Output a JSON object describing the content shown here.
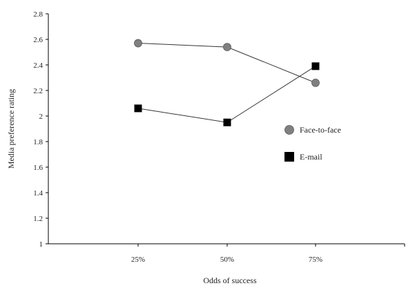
{
  "chart_data": {
    "type": "line",
    "title": "",
    "xlabel": "Odds of success",
    "ylabel": "Media preference rating",
    "categories": [
      "25%",
      "50%",
      "75%"
    ],
    "ylim": [
      1,
      2.8
    ],
    "yticks": [
      "1",
      "1.2",
      "1.4",
      "1.6",
      "1.8",
      "2",
      "2.2",
      "2.4",
      "2.6",
      "2.8"
    ],
    "grid": false,
    "legend_position": "right",
    "series": [
      {
        "name": "Face-to-face",
        "values": [
          2.57,
          2.54,
          2.26
        ],
        "marker": "circle",
        "color": "#808080"
      },
      {
        "name": "E-mail",
        "values": [
          2.06,
          1.95,
          2.39
        ],
        "marker": "square",
        "color": "#000000"
      }
    ]
  }
}
